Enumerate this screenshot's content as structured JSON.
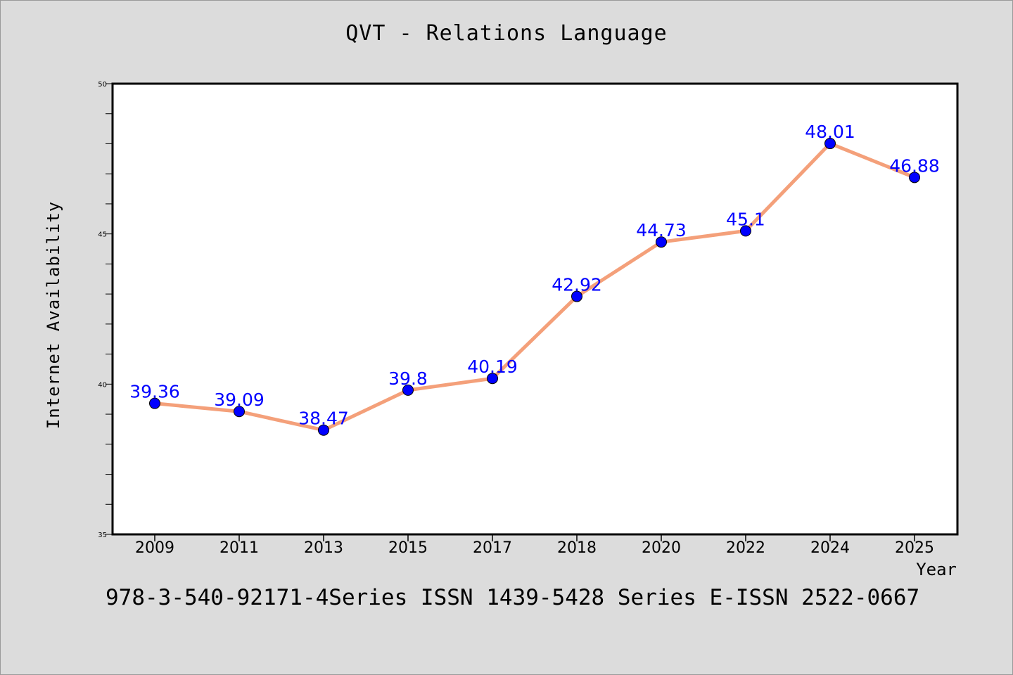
{
  "chart_data": {
    "type": "line",
    "title": "QVT - Relations Language",
    "xlabel": "Year",
    "ylabel": "Internet Availability",
    "categories": [
      "2009",
      "2011",
      "2013",
      "2015",
      "2017",
      "2018",
      "2020",
      "2022",
      "2024",
      "2025"
    ],
    "values": [
      39.36,
      39.09,
      38.47,
      39.8,
      40.19,
      42.92,
      44.73,
      45.1,
      48.01,
      46.88
    ],
    "data_labels": [
      "39.36",
      "39.09",
      "38.47",
      "39.8",
      "40.19",
      "42.92",
      "44.73",
      "45.1",
      "48.01",
      "46.88"
    ],
    "ylim": [
      35,
      50
    ],
    "yticks": [
      "35",
      "40",
      "45",
      "50"
    ],
    "grid": false,
    "line_color": "#f4a07a",
    "marker_color": "#0000ff",
    "label_color": "#0000ff"
  },
  "footer_text": "978-3-540-92171-4Series ISSN 1439-5428 Series E-ISSN 2522-0667"
}
